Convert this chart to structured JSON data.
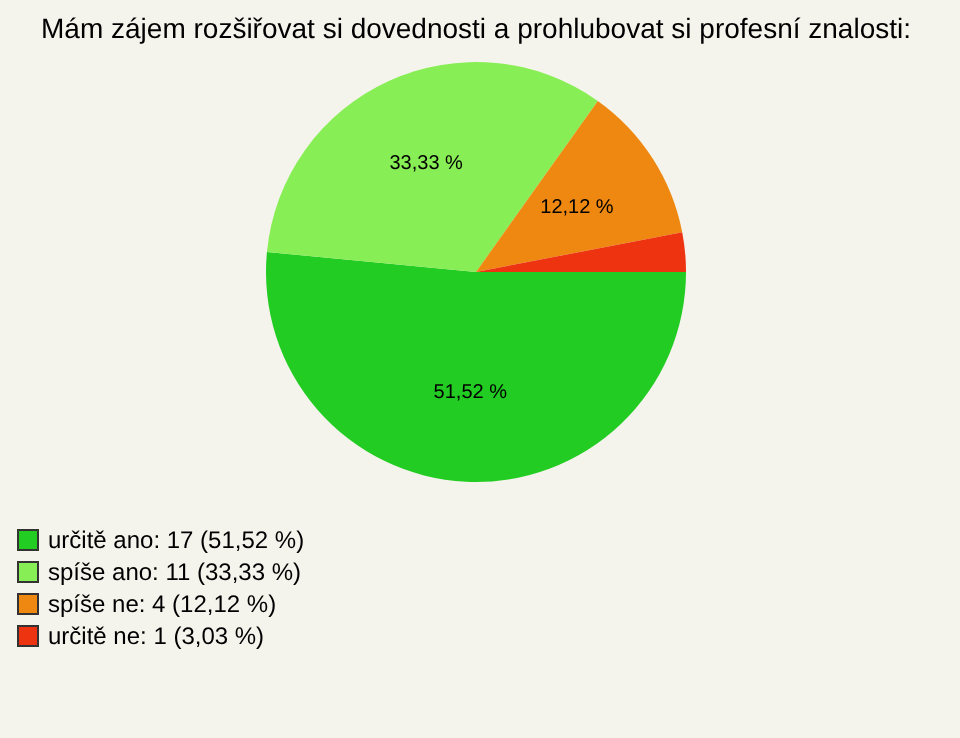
{
  "chart_data": {
    "type": "pie",
    "title": "Mám zájem rozšiřovat si dovednosti a prohlubovat si profesní znalosti:",
    "categories": [
      "určitě ano: 17 (51,52 %)",
      "spíše ano: 11 (33,33 %)",
      "spíše ne: 4 (12,12 %)",
      "určitě ne: 1 (3,03 %)"
    ],
    "values": [
      51.52,
      33.33,
      12.12,
      3.03
    ],
    "colors": [
      "#22cc22",
      "#88ee55",
      "#ee8811",
      "#ee3311"
    ],
    "value_labels": [
      "51,52 %",
      "33,33 %",
      "12,12 %",
      null
    ],
    "legend": "bottom left"
  }
}
